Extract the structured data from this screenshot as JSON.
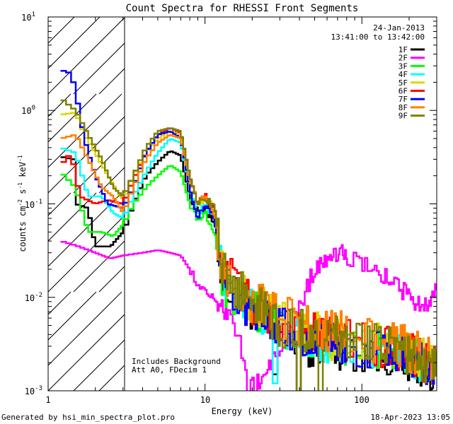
{
  "chart_data": {
    "type": "line",
    "title": "Count Spectra for RHESSI Front Segments",
    "xlabel": "Energy (keV)",
    "ylabel_parts": [
      "counts cm",
      "-2",
      " s",
      "-1",
      " keV",
      "-1"
    ],
    "xscale": "log",
    "yscale": "log",
    "xlim": [
      1,
      300
    ],
    "ylim": [
      0.001,
      10
    ],
    "x_tick_labels": [
      "1",
      "10",
      "100"
    ],
    "y_tick_labels": [
      {
        "base": "10",
        "exp": "1"
      },
      {
        "base": "10",
        "exp": "0"
      },
      {
        "base": "10",
        "exp": "-1"
      },
      {
        "base": "10",
        "exp": "-2"
      },
      {
        "base": "10",
        "exp": "-3"
      }
    ],
    "date": "24-Jan-2013",
    "time_range": "13:41:00 to 13:42:00",
    "annotations": [
      "Includes Background",
      "Att A0, FDecim 1"
    ],
    "hatched_region_keV": [
      1,
      3
    ],
    "legend_position": "top-right",
    "series": [
      {
        "name": "1F",
        "color": "#000000",
        "knots": [
          [
            1.2,
            0.32
          ],
          [
            1.45,
            0.3
          ],
          [
            1.5,
            0.1
          ],
          [
            1.8,
            0.09
          ],
          [
            2.0,
            0.035
          ],
          [
            2.5,
            0.035
          ],
          [
            3.0,
            0.05
          ],
          [
            3.5,
            0.1
          ],
          [
            4.2,
            0.2
          ],
          [
            5.0,
            0.28
          ],
          [
            6.0,
            0.37
          ],
          [
            7.0,
            0.33
          ],
          [
            8.0,
            0.12
          ],
          [
            9.0,
            0.08
          ],
          [
            10.0,
            0.09
          ],
          [
            11.5,
            0.06
          ],
          [
            13.0,
            0.015
          ],
          [
            18.0,
            0.008
          ],
          [
            30.0,
            0.005
          ],
          [
            45.0,
            0.003
          ],
          [
            70.0,
            0.0028
          ],
          [
            110.0,
            0.0025
          ],
          [
            180.0,
            0.0022
          ],
          [
            300.0,
            0.0015
          ]
        ],
        "noise": 0.22,
        "dips": [
          [
            40,
            0.0008
          ],
          [
            28,
            0.0015
          ]
        ]
      },
      {
        "name": "2F",
        "color": "#ff00ff",
        "knots": [
          [
            1.2,
            0.04
          ],
          [
            1.5,
            0.036
          ],
          [
            2.0,
            0.03
          ],
          [
            2.5,
            0.026
          ],
          [
            3.0,
            0.028
          ],
          [
            4.0,
            0.03
          ],
          [
            5.0,
            0.032
          ],
          [
            6.0,
            0.03
          ],
          [
            7.0,
            0.028
          ],
          [
            8.0,
            0.02
          ],
          [
            9.0,
            0.014
          ],
          [
            10.0,
            0.012
          ],
          [
            13.0,
            0.008
          ],
          [
            16.0,
            0.004
          ],
          [
            19.0,
            0.0015
          ],
          [
            22.0,
            0.0012
          ],
          [
            30.0,
            0.003
          ],
          [
            40.0,
            0.008
          ],
          [
            50.0,
            0.02
          ],
          [
            65.0,
            0.031
          ],
          [
            80.0,
            0.028
          ],
          [
            100.0,
            0.022
          ],
          [
            130.0,
            0.018
          ],
          [
            160.0,
            0.015
          ],
          [
            200.0,
            0.01
          ],
          [
            250.0,
            0.008
          ],
          [
            300.0,
            0.012
          ]
        ],
        "noise": 0.1,
        "dips": [
          [
            19,
            0.0009
          ],
          [
            21,
            0.0008
          ]
        ]
      },
      {
        "name": "3F",
        "color": "#00ff00",
        "knots": [
          [
            1.2,
            0.22
          ],
          [
            1.5,
            0.15
          ],
          [
            1.8,
            0.05
          ],
          [
            2.2,
            0.05
          ],
          [
            2.6,
            0.045
          ],
          [
            3.0,
            0.06
          ],
          [
            3.5,
            0.1
          ],
          [
            4.2,
            0.15
          ],
          [
            5.0,
            0.2
          ],
          [
            6.0,
            0.26
          ],
          [
            7.0,
            0.22
          ],
          [
            8.0,
            0.1
          ],
          [
            9.0,
            0.07
          ],
          [
            10.0,
            0.08
          ],
          [
            11.5,
            0.05
          ],
          [
            13.0,
            0.014
          ],
          [
            18.0,
            0.008
          ],
          [
            30.0,
            0.005
          ],
          [
            50.0,
            0.0035
          ],
          [
            80.0,
            0.003
          ],
          [
            120.0,
            0.0028
          ],
          [
            200.0,
            0.0025
          ],
          [
            300.0,
            0.0018
          ]
        ],
        "noise": 0.22,
        "dips": []
      },
      {
        "name": "4F",
        "color": "#00ffff",
        "knots": [
          [
            1.2,
            0.4
          ],
          [
            1.5,
            0.35
          ],
          [
            1.8,
            0.12
          ],
          [
            2.2,
            0.12
          ],
          [
            2.6,
            0.08
          ],
          [
            3.0,
            0.07
          ],
          [
            3.5,
            0.12
          ],
          [
            4.2,
            0.22
          ],
          [
            5.0,
            0.35
          ],
          [
            6.0,
            0.5
          ],
          [
            7.0,
            0.45
          ],
          [
            8.0,
            0.15
          ],
          [
            9.0,
            0.08
          ],
          [
            10.0,
            0.1
          ],
          [
            11.5,
            0.07
          ],
          [
            13.0,
            0.016
          ],
          [
            18.0,
            0.009
          ],
          [
            30.0,
            0.005
          ],
          [
            50.0,
            0.0035
          ],
          [
            80.0,
            0.003
          ],
          [
            130.0,
            0.0028
          ],
          [
            200.0,
            0.0024
          ],
          [
            300.0,
            0.0016
          ]
        ],
        "noise": 0.22,
        "dips": [
          [
            28,
            0.0012
          ]
        ]
      },
      {
        "name": "5F",
        "color": "#d8d800",
        "knots": [
          [
            1.2,
            0.9
          ],
          [
            1.5,
            0.95
          ],
          [
            1.7,
            0.55
          ],
          [
            2.0,
            0.35
          ],
          [
            2.4,
            0.2
          ],
          [
            3.0,
            0.11
          ],
          [
            3.5,
            0.2
          ],
          [
            4.2,
            0.35
          ],
          [
            5.0,
            0.5
          ],
          [
            6.0,
            0.6
          ],
          [
            7.0,
            0.55
          ],
          [
            8.0,
            0.18
          ],
          [
            9.0,
            0.1
          ],
          [
            10.0,
            0.11
          ],
          [
            11.5,
            0.09
          ],
          [
            13.0,
            0.02
          ],
          [
            18.0,
            0.01
          ],
          [
            30.0,
            0.006
          ],
          [
            50.0,
            0.004
          ],
          [
            80.0,
            0.0035
          ],
          [
            130.0,
            0.003
          ],
          [
            200.0,
            0.0027
          ],
          [
            300.0,
            0.002
          ]
        ],
        "noise": 0.25,
        "dips": []
      },
      {
        "name": "6F",
        "color": "#ff0000",
        "knots": [
          [
            1.2,
            0.26
          ],
          [
            1.4,
            0.35
          ],
          [
            1.6,
            0.12
          ],
          [
            2.0,
            0.1
          ],
          [
            2.4,
            0.11
          ],
          [
            3.0,
            0.1
          ],
          [
            3.5,
            0.18
          ],
          [
            4.2,
            0.35
          ],
          [
            5.0,
            0.55
          ],
          [
            6.0,
            0.65
          ],
          [
            7.0,
            0.58
          ],
          [
            8.0,
            0.2
          ],
          [
            9.0,
            0.1
          ],
          [
            10.0,
            0.12
          ],
          [
            11.5,
            0.09
          ],
          [
            13.0,
            0.02
          ],
          [
            18.0,
            0.01
          ],
          [
            30.0,
            0.006
          ],
          [
            50.0,
            0.004
          ],
          [
            80.0,
            0.0035
          ],
          [
            130.0,
            0.003
          ],
          [
            200.0,
            0.0026
          ],
          [
            300.0,
            0.0018
          ]
        ],
        "noise": 0.24,
        "dips": []
      },
      {
        "name": "7F",
        "color": "#0000ff",
        "knots": [
          [
            1.2,
            2.7
          ],
          [
            1.4,
            2.5
          ],
          [
            1.5,
            1.6
          ],
          [
            1.7,
            0.5
          ],
          [
            2.0,
            0.2
          ],
          [
            2.4,
            0.1
          ],
          [
            3.0,
            0.09
          ],
          [
            3.5,
            0.15
          ],
          [
            4.2,
            0.35
          ],
          [
            5.0,
            0.55
          ],
          [
            6.0,
            0.6
          ],
          [
            7.0,
            0.5
          ],
          [
            8.0,
            0.15
          ],
          [
            9.0,
            0.07
          ],
          [
            10.0,
            0.1
          ],
          [
            11.5,
            0.07
          ],
          [
            13.0,
            0.015
          ],
          [
            18.0,
            0.008
          ],
          [
            30.0,
            0.005
          ],
          [
            50.0,
            0.0035
          ],
          [
            80.0,
            0.003
          ],
          [
            130.0,
            0.0028
          ],
          [
            200.0,
            0.0024
          ],
          [
            300.0,
            0.0017
          ]
        ],
        "noise": 0.22,
        "dips": []
      },
      {
        "name": "8F",
        "color": "#ff8000",
        "knots": [
          [
            1.2,
            0.5
          ],
          [
            1.5,
            0.55
          ],
          [
            1.8,
            0.3
          ],
          [
            2.2,
            0.15
          ],
          [
            2.6,
            0.12
          ],
          [
            3.0,
            0.08
          ],
          [
            3.5,
            0.15
          ],
          [
            4.2,
            0.3
          ],
          [
            5.0,
            0.45
          ],
          [
            6.0,
            0.55
          ],
          [
            7.0,
            0.5
          ],
          [
            8.0,
            0.18
          ],
          [
            9.0,
            0.1
          ],
          [
            10.0,
            0.12
          ],
          [
            11.5,
            0.08
          ],
          [
            13.0,
            0.02
          ],
          [
            18.0,
            0.01
          ],
          [
            30.0,
            0.006
          ],
          [
            50.0,
            0.0045
          ],
          [
            80.0,
            0.004
          ],
          [
            130.0,
            0.0032
          ],
          [
            200.0,
            0.0028
          ],
          [
            300.0,
            0.002
          ]
        ],
        "noise": 0.25,
        "dips": []
      },
      {
        "name": "9F",
        "color": "#808000",
        "knots": [
          [
            1.2,
            1.35
          ],
          [
            1.5,
            1.0
          ],
          [
            1.8,
            0.55
          ],
          [
            2.2,
            0.3
          ],
          [
            2.6,
            0.15
          ],
          [
            3.0,
            0.12
          ],
          [
            3.5,
            0.2
          ],
          [
            4.2,
            0.4
          ],
          [
            5.0,
            0.6
          ],
          [
            6.0,
            0.65
          ],
          [
            7.0,
            0.6
          ],
          [
            8.0,
            0.2
          ],
          [
            9.0,
            0.1
          ],
          [
            10.0,
            0.12
          ],
          [
            11.5,
            0.09
          ],
          [
            13.0,
            0.02
          ],
          [
            18.0,
            0.01
          ],
          [
            30.0,
            0.005
          ],
          [
            50.0,
            0.004
          ],
          [
            80.0,
            0.0035
          ],
          [
            130.0,
            0.003
          ],
          [
            200.0,
            0.0025
          ],
          [
            300.0,
            0.0018
          ]
        ],
        "noise": 0.24,
        "dips": [
          [
            40,
            0.0006
          ],
          [
            55,
            0.0009
          ]
        ]
      }
    ]
  },
  "footer": {
    "left": "Generated by hsi_min_spectra_plot.pro",
    "right": "18-Apr-2023 13:05"
  }
}
